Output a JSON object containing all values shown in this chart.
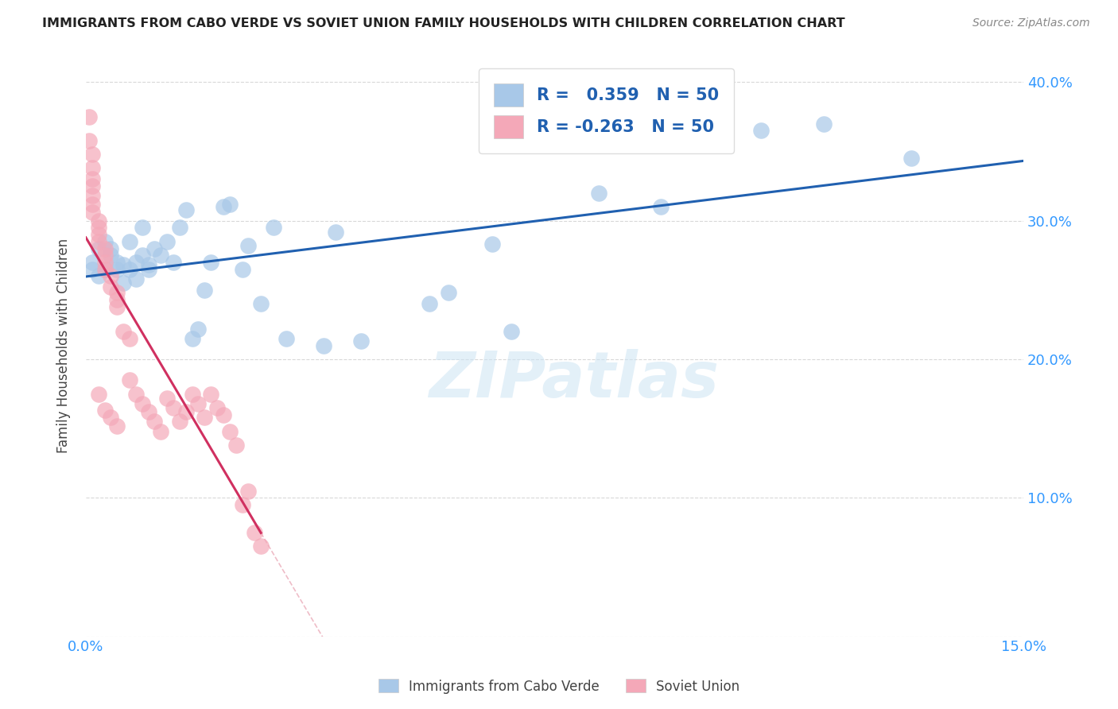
{
  "title": "IMMIGRANTS FROM CABO VERDE VS SOVIET UNION FAMILY HOUSEHOLDS WITH CHILDREN CORRELATION CHART",
  "source": "Source: ZipAtlas.com",
  "ylabel": "Family Households with Children",
  "watermark": "ZIPatlas",
  "xlim": [
    0,
    0.15
  ],
  "ylim": [
    0,
    0.42
  ],
  "cabo_verde_R": 0.359,
  "cabo_verde_N": 50,
  "soviet_union_R": -0.263,
  "soviet_union_N": 50,
  "cabo_verde_color": "#a8c8e8",
  "soviet_union_color": "#f4a8b8",
  "cabo_verde_line_color": "#2060b0",
  "soviet_union_line_color": "#d03060",
  "cabo_verde_x": [
    0.001,
    0.001,
    0.002,
    0.002,
    0.003,
    0.003,
    0.004,
    0.004,
    0.005,
    0.005,
    0.006,
    0.006,
    0.007,
    0.007,
    0.008,
    0.008,
    0.009,
    0.009,
    0.01,
    0.01,
    0.011,
    0.012,
    0.013,
    0.014,
    0.015,
    0.016,
    0.017,
    0.018,
    0.019,
    0.02,
    0.022,
    0.023,
    0.025,
    0.026,
    0.028,
    0.03,
    0.032,
    0.038,
    0.04,
    0.044,
    0.055,
    0.058,
    0.065,
    0.068,
    0.082,
    0.085,
    0.092,
    0.108,
    0.118,
    0.132
  ],
  "cabo_verde_y": [
    0.27,
    0.265,
    0.28,
    0.26,
    0.285,
    0.265,
    0.28,
    0.275,
    0.27,
    0.265,
    0.268,
    0.255,
    0.265,
    0.285,
    0.27,
    0.258,
    0.295,
    0.275,
    0.265,
    0.268,
    0.28,
    0.275,
    0.285,
    0.27,
    0.295,
    0.308,
    0.215,
    0.222,
    0.25,
    0.27,
    0.31,
    0.312,
    0.265,
    0.282,
    0.24,
    0.295,
    0.215,
    0.21,
    0.292,
    0.213,
    0.24,
    0.248,
    0.283,
    0.22,
    0.32,
    0.36,
    0.31,
    0.365,
    0.37,
    0.345
  ],
  "soviet_union_x": [
    0.0005,
    0.0005,
    0.001,
    0.001,
    0.001,
    0.001,
    0.001,
    0.001,
    0.001,
    0.002,
    0.002,
    0.002,
    0.002,
    0.003,
    0.003,
    0.003,
    0.003,
    0.004,
    0.004,
    0.005,
    0.005,
    0.005,
    0.006,
    0.007,
    0.007,
    0.008,
    0.009,
    0.01,
    0.011,
    0.012,
    0.013,
    0.014,
    0.015,
    0.016,
    0.017,
    0.018,
    0.019,
    0.02,
    0.021,
    0.022,
    0.023,
    0.024,
    0.025,
    0.026,
    0.027,
    0.028,
    0.002,
    0.003,
    0.004,
    0.005
  ],
  "soviet_union_y": [
    0.375,
    0.358,
    0.348,
    0.338,
    0.33,
    0.325,
    0.318,
    0.312,
    0.306,
    0.3,
    0.295,
    0.29,
    0.285,
    0.28,
    0.275,
    0.27,
    0.265,
    0.26,
    0.252,
    0.248,
    0.243,
    0.238,
    0.22,
    0.215,
    0.185,
    0.175,
    0.168,
    0.162,
    0.155,
    0.148,
    0.172,
    0.165,
    0.155,
    0.162,
    0.175,
    0.168,
    0.158,
    0.175,
    0.165,
    0.16,
    0.148,
    0.138,
    0.095,
    0.105,
    0.075,
    0.065,
    0.175,
    0.163,
    0.158,
    0.152
  ]
}
